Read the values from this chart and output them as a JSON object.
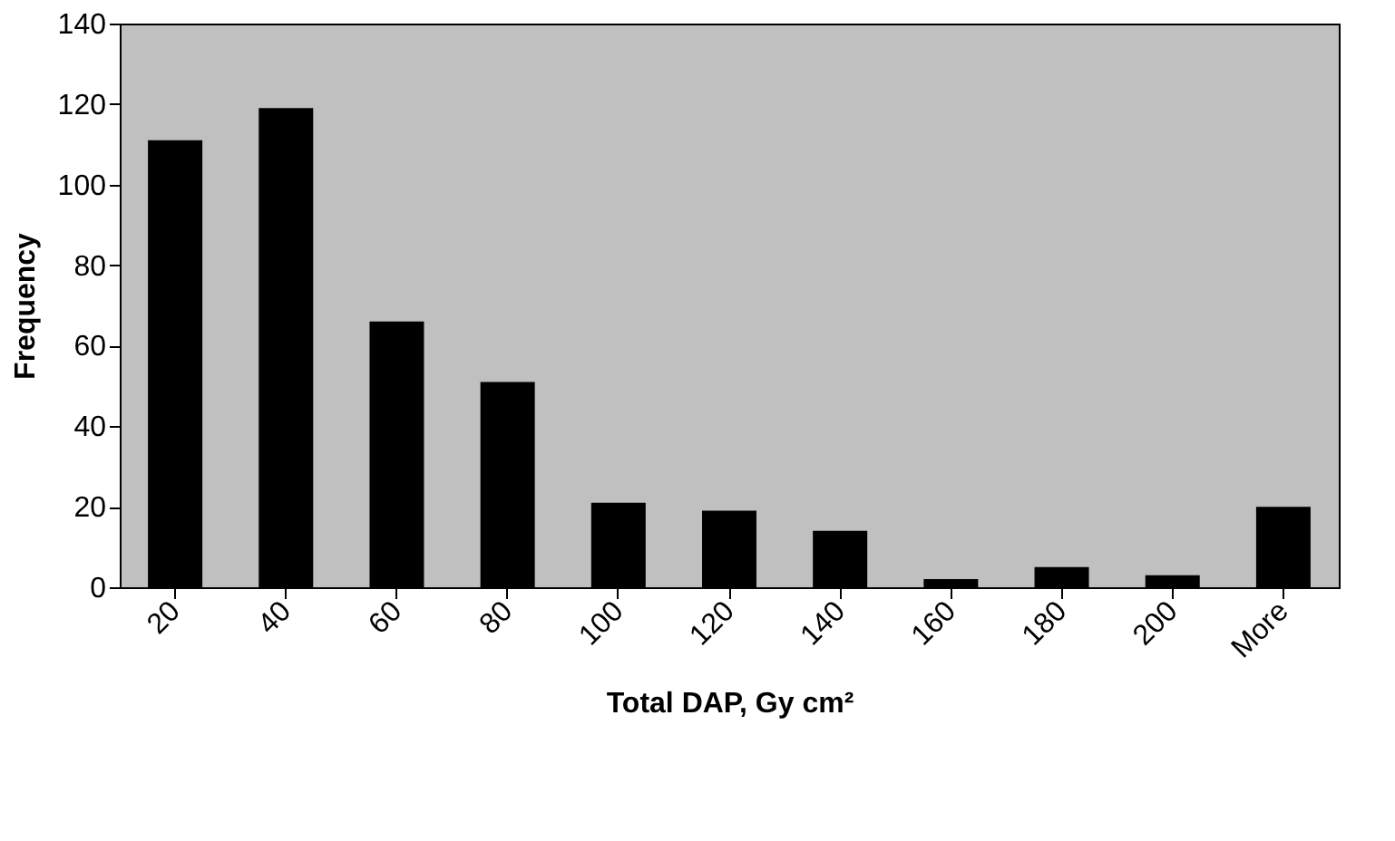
{
  "chart_data": {
    "type": "bar",
    "xlabel": "Total DAP, Gy cm²",
    "ylabel": "Frequency",
    "categories": [
      "20",
      "40",
      "60",
      "80",
      "100",
      "120",
      "140",
      "160",
      "180",
      "200",
      "More"
    ],
    "values": [
      111,
      119,
      66,
      51,
      21,
      19,
      14,
      2,
      5,
      3,
      20
    ],
    "color": "#000000",
    "ylim": [
      0,
      140
    ],
    "yticks": [
      0,
      20,
      40,
      60,
      80,
      100,
      120,
      140
    ],
    "grid": false
  }
}
